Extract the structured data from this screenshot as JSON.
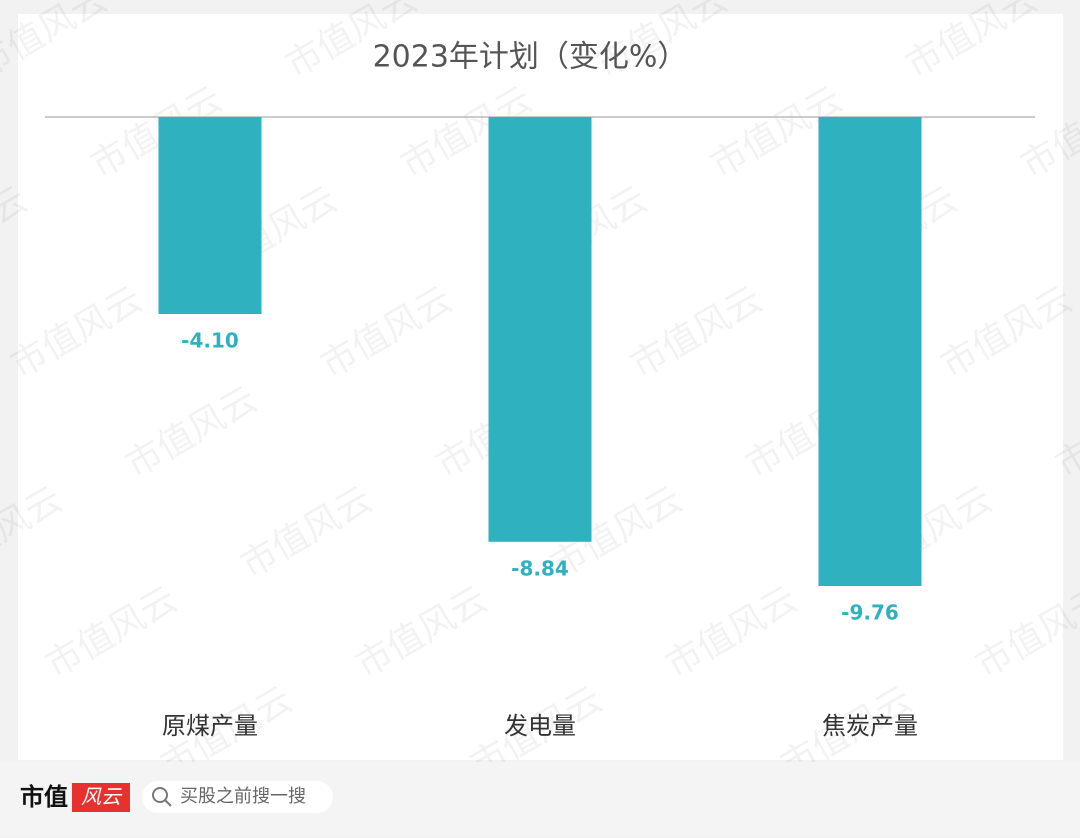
{
  "chart_data": {
    "type": "bar",
    "title": "2023年计划（变化%）",
    "categories": [
      "原煤产量",
      "发电量",
      "焦炭产量"
    ],
    "values": [
      -4.1,
      -8.84,
      -9.76
    ],
    "value_labels": [
      "-4.10",
      "-8.84",
      "-9.76"
    ],
    "color": "#2fb1c0"
  },
  "watermark": "市值风云",
  "footer": {
    "logo": "市值",
    "logo_mark": "风云",
    "search": "买股之前搜一搜"
  }
}
